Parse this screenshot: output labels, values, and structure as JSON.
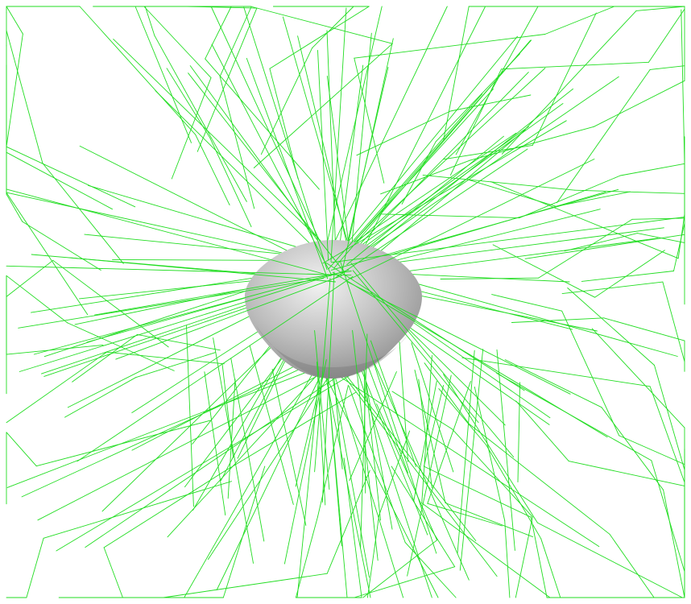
{
  "scene": {
    "background_color": "#ffffff",
    "ray_color": "#22dd22",
    "hemisphere_colors": {
      "highlight": "#f2f2f2",
      "mid": "#bdbdbd",
      "shadow": "#8a8a8a",
      "rim_dark": "#6f6f6f"
    },
    "objects": [
      {
        "name": "hemisphere-bowl",
        "kind": "shaded half-sphere"
      },
      {
        "name": "ray-bundle",
        "kind": "scattered light paths"
      }
    ]
  }
}
